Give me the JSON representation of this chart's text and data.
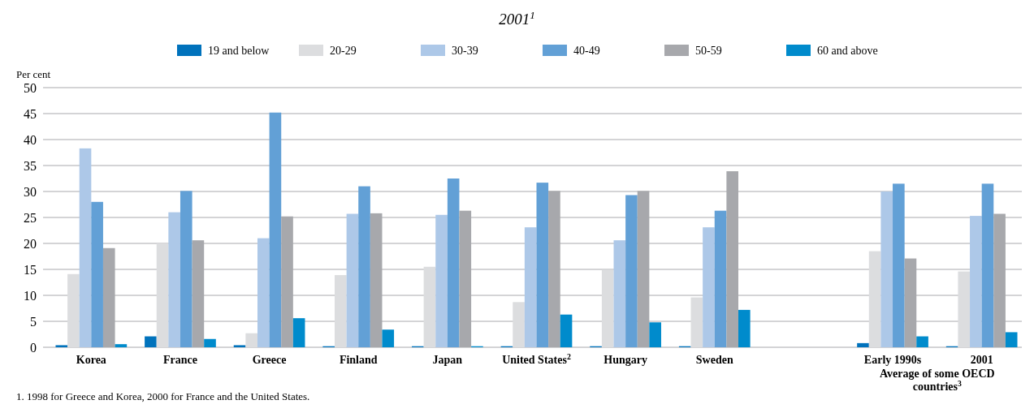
{
  "chart_data": {
    "type": "bar",
    "title": "2001$^{1}$",
    "ylabel": "Per cent",
    "categories": [
      "Korea",
      "France",
      "Greece",
      "Finland",
      "Japan",
      "United States$^{2}$",
      "Hungary",
      "Sweden",
      null,
      "Early 1990s",
      "2001"
    ],
    "series": [
      {
        "name": "19 and below",
        "color": "#0072bc",
        "values": [
          0.4,
          2.1,
          0.4,
          0.2,
          0.2,
          0.2,
          0.2,
          0.2,
          null,
          0.8,
          0.2
        ]
      },
      {
        "name": "20-29",
        "color": "#dcdddf",
        "values": [
          14.1,
          20.0,
          2.7,
          13.9,
          15.5,
          8.7,
          14.9,
          9.6,
          null,
          18.5,
          14.6
        ]
      },
      {
        "name": "30-39",
        "color": "#adc8e8",
        "values": [
          38.3,
          26.0,
          21.0,
          25.7,
          25.5,
          23.1,
          20.6,
          23.1,
          null,
          30.0,
          25.3
        ]
      },
      {
        "name": "40-49",
        "color": "#62a0d6",
        "values": [
          28.0,
          30.1,
          45.2,
          31.0,
          32.5,
          31.7,
          29.3,
          26.3,
          null,
          31.5,
          31.5
        ]
      },
      {
        "name": "50-59",
        "color": "#a7a8ac",
        "values": [
          19.1,
          20.6,
          25.2,
          25.8,
          26.3,
          30.1,
          30.1,
          33.9,
          null,
          17.1,
          25.7
        ]
      },
      {
        "name": "60 and above",
        "color": "#008bcc",
        "values": [
          0.6,
          1.6,
          5.6,
          3.4,
          0.2,
          6.3,
          4.8,
          7.2,
          null,
          2.1,
          2.9
        ]
      }
    ],
    "ylim": [
      0,
      50
    ],
    "yticks": [
      0,
      5,
      10,
      15,
      20,
      25,
      30,
      35,
      40,
      45,
      50
    ],
    "grid": "y",
    "legend": "top",
    "annotations": [
      "Average of some OECD countries$^{3}$",
      "1. 1998 for Greece and Korea, 2000 for France and the United States."
    ]
  }
}
